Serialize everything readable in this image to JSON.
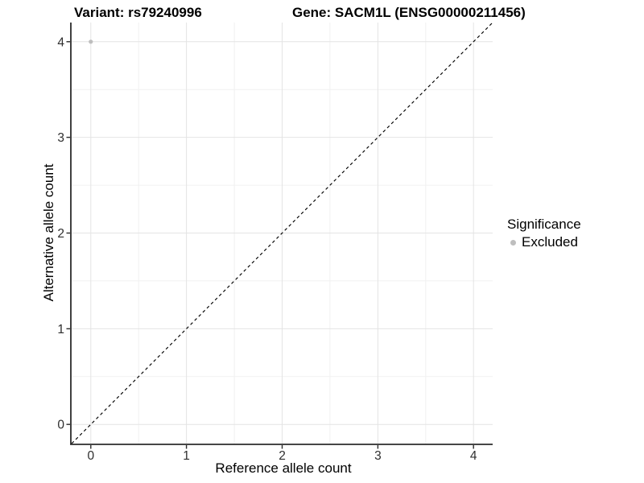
{
  "chart_data": {
    "type": "scatter",
    "titles": [
      "Variant: rs79240996",
      "Gene: SACM1L (ENSG00000211456)"
    ],
    "xlabel": "Reference allele count",
    "ylabel": "Alternative allele count",
    "xlim": [
      -0.2,
      4.2
    ],
    "ylim": [
      -0.2,
      4.2
    ],
    "x_ticks": [
      0,
      1,
      2,
      3,
      4
    ],
    "y_ticks": [
      0,
      1,
      2,
      3,
      4
    ],
    "grid": "major gridlines at integers, minor gridlines at 0.5 steps",
    "legend_position": "right",
    "series": [
      {
        "name": "Excluded",
        "color": "#bebebe",
        "points": [
          {
            "x": 0,
            "y": 4
          }
        ]
      }
    ],
    "reference_line": {
      "kind": "identity y=x",
      "style": "dashed",
      "color": "#000000",
      "from": [
        -0.2,
        -0.2
      ],
      "to": [
        4.2,
        4.2
      ]
    }
  },
  "legend": {
    "title": "Significance",
    "items": [
      {
        "label": "Excluded",
        "color": "#bebebe"
      }
    ]
  },
  "colors": {
    "background": "#ffffff",
    "grid_major": "#e4e4e4",
    "grid_minor": "#f1f1f1",
    "axis_line": "#2b2b2b",
    "tick_label": "#2e2e2e"
  }
}
